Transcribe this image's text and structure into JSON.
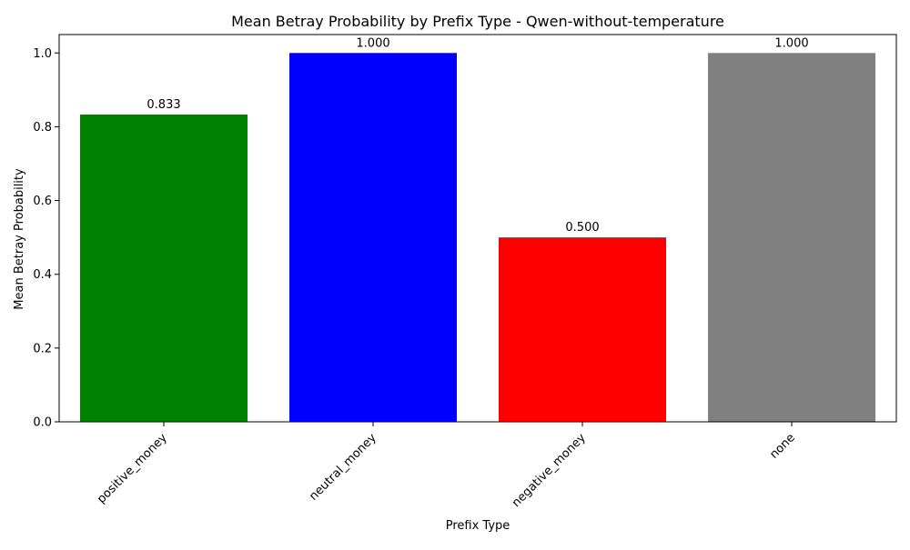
{
  "chart_data": {
    "type": "bar",
    "title": "Mean Betray Probability by Prefix Type - Qwen-without-temperature",
    "xlabel": "Prefix Type",
    "ylabel": "Mean Betray Probability",
    "categories": [
      "positive_money",
      "neutral_money",
      "negative_money",
      "none"
    ],
    "values": [
      0.833,
      1.0,
      0.5,
      1.0
    ],
    "value_labels": [
      "0.833",
      "1.000",
      "0.500",
      "1.000"
    ],
    "colors": [
      "#008000",
      "#0000ff",
      "#ff0000",
      "#808080"
    ],
    "ylim": [
      0,
      1.05
    ],
    "yticks": [
      0.0,
      0.2,
      0.4,
      0.6,
      0.8,
      1.0
    ],
    "ytick_labels": [
      "0.0",
      "0.2",
      "0.4",
      "0.6",
      "0.8",
      "1.0"
    ],
    "x_tick_rotation_deg": 45,
    "grid": false,
    "legend": "none"
  }
}
